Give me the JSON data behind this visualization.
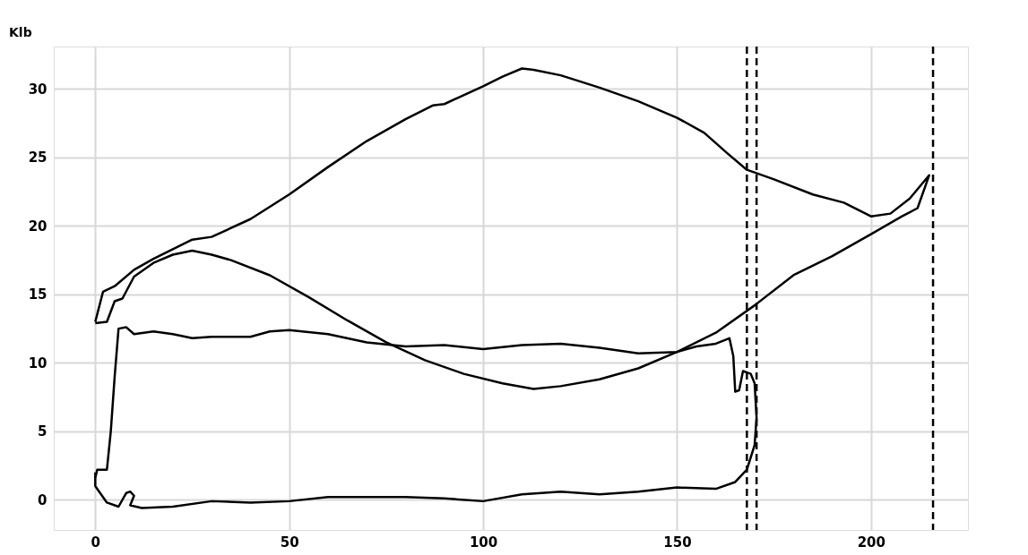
{
  "chart_data": {
    "type": "line",
    "ylabel": "Klb",
    "xlim": [
      -10.7,
      225
    ],
    "ylim": [
      -2.2,
      33.1
    ],
    "xticks": [
      0,
      50,
      100,
      150,
      200
    ],
    "yticks": [
      0,
      5,
      10,
      15,
      20,
      25,
      30
    ],
    "grid": true,
    "line_style": "solid",
    "marker": "none",
    "ref_lines": [
      {
        "axis": "x",
        "value": 168,
        "color": "#000000",
        "line_style": "dashed"
      },
      {
        "axis": "x",
        "value": 170.5,
        "color": "#000000",
        "line_style": "dashed"
      },
      {
        "axis": "x",
        "value": 216,
        "color": "#000000",
        "line_style": "dashed"
      }
    ],
    "series": [
      {
        "color": "#000000",
        "x": [
          0,
          2,
          5,
          10,
          15,
          20,
          25,
          30,
          40,
          50,
          60,
          70,
          80,
          87,
          90,
          100,
          105,
          110,
          113,
          120,
          130,
          140,
          150,
          157,
          163,
          168,
          175,
          185,
          193,
          200,
          205,
          210,
          215,
          212,
          208,
          200,
          190,
          180,
          170,
          160,
          150,
          140,
          130,
          120,
          113,
          105,
          95,
          85,
          75,
          65,
          55,
          45,
          35,
          30,
          25,
          20,
          15,
          10,
          7,
          5,
          3,
          0
        ],
        "values": [
          13,
          15.2,
          15.6,
          16.8,
          17.6,
          18.3,
          19,
          19.2,
          20.5,
          22.3,
          24.3,
          26.2,
          27.8,
          28.8,
          28.9,
          30.2,
          30.9,
          31.5,
          31.4,
          31,
          30.1,
          29.1,
          27.9,
          26.8,
          25.3,
          24.1,
          23.4,
          22.3,
          21.7,
          20.7,
          20.9,
          22,
          23.7,
          21.3,
          20.7,
          19.4,
          17.8,
          16.4,
          14.2,
          12.2,
          10.8,
          9.6,
          8.8,
          8.3,
          8.1,
          8.5,
          9.2,
          10.2,
          11.5,
          13.1,
          14.8,
          16.4,
          17.5,
          17.9,
          18.2,
          17.9,
          17.3,
          16.3,
          14.7,
          14.5,
          13,
          12.9
        ]
      },
      {
        "color": "#000000",
        "x": [
          0,
          0,
          1,
          3,
          6,
          8,
          9,
          10,
          9,
          12,
          20,
          30,
          40,
          50,
          60,
          70,
          80,
          90,
          100,
          110,
          120,
          130,
          140,
          150,
          160,
          165,
          168,
          170,
          170.5,
          170,
          169,
          167,
          166,
          165,
          164.5,
          163.5,
          160,
          155,
          150,
          140,
          130,
          120,
          110,
          100,
          90,
          80,
          70,
          60,
          50,
          45,
          40,
          30,
          25,
          20,
          15,
          10,
          8,
          6,
          5,
          4,
          3,
          0.5,
          0
        ],
        "values": [
          2,
          1,
          0.6,
          -0.2,
          -0.5,
          0.5,
          0.6,
          0.3,
          -0.4,
          -0.6,
          -0.5,
          -0.1,
          -0.2,
          -0.1,
          0.2,
          0.2,
          0.2,
          0.1,
          -0.1,
          0.4,
          0.6,
          0.4,
          0.6,
          0.9,
          0.8,
          1.3,
          2.2,
          4,
          6,
          8.5,
          9.2,
          9.4,
          8,
          7.9,
          10.5,
          11.8,
          11.4,
          11.2,
          10.8,
          10.7,
          11.1,
          11.4,
          11.3,
          11,
          11.3,
          11.2,
          11.5,
          12.1,
          12.4,
          12.3,
          11.9,
          11.9,
          11.8,
          12.1,
          12.3,
          12.1,
          12.6,
          12.5,
          9,
          5,
          2.2,
          2.2,
          1.6
        ]
      }
    ]
  }
}
